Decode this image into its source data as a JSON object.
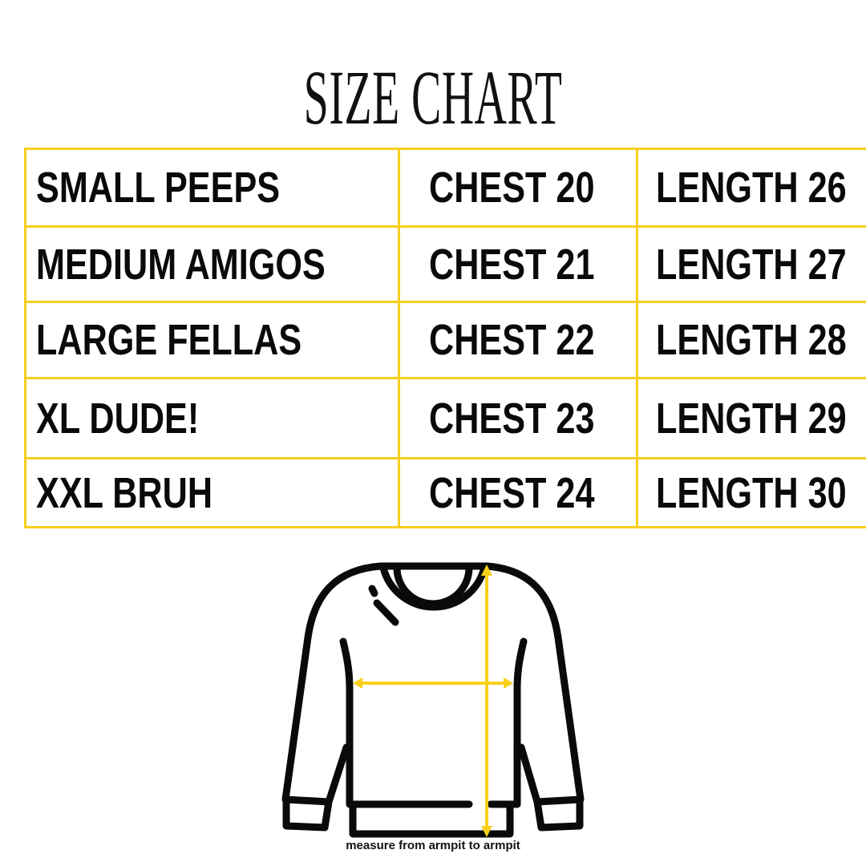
{
  "title": "SIZE CHART",
  "colors": {
    "accent": "#F8CF1C",
    "text": "#0a0a0a"
  },
  "rows": [
    {
      "size": "SMALL PEEPS",
      "chest": "CHEST 20",
      "length": "LENGTH 26"
    },
    {
      "size": "MEDIUM AMIGOS",
      "chest": "CHEST 21",
      "length": "LENGTH 27"
    },
    {
      "size": "LARGE FELLAS",
      "chest": "CHEST 22",
      "length": "LENGTH 28"
    },
    {
      "size": "XL DUDE!",
      "chest": "CHEST 23",
      "length": "LENGTH 29"
    },
    {
      "size": "XXL BRUH",
      "chest": "CHEST 24",
      "length": "LENGTH 30"
    }
  ],
  "illustration": {
    "icon": "sweatshirt-icon",
    "note": "measure from armpit to armpit"
  }
}
